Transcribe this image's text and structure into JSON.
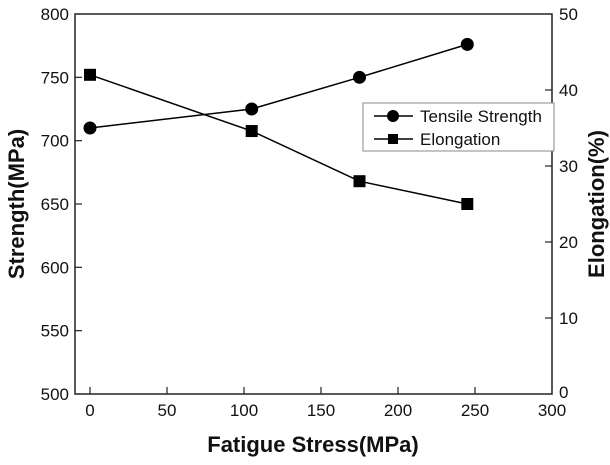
{
  "chart_data": {
    "type": "line",
    "title": "",
    "xlabel": "Fatigue Stress(MPa)",
    "ylabel": "Strength(MPa)",
    "y2label": "Elongation(%)",
    "xlim": [
      -10,
      300
    ],
    "ylim": [
      500,
      800
    ],
    "y2lim": [
      0,
      50
    ],
    "xticks": [
      0,
      50,
      100,
      150,
      200,
      250,
      300
    ],
    "yticks": [
      500,
      550,
      600,
      650,
      700,
      750,
      800
    ],
    "y2ticks": [
      0,
      10,
      20,
      30,
      40,
      50
    ],
    "grid": false,
    "legend_position": "center-right",
    "series": [
      {
        "name": "Tensile Strength",
        "axis": "left",
        "marker": "circle",
        "x": [
          0,
          105,
          175,
          245
        ],
        "values": [
          710,
          725,
          750,
          776
        ]
      },
      {
        "name": "Elongation",
        "axis": "right",
        "marker": "square",
        "x": [
          0,
          105,
          175,
          245
        ],
        "values": [
          42,
          34.6,
          28,
          25
        ]
      }
    ]
  }
}
